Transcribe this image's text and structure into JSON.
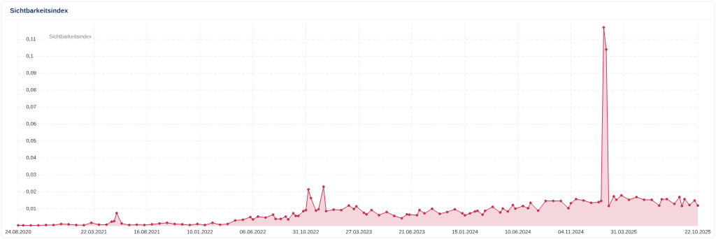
{
  "chart_data": {
    "type": "area",
    "title": "Sichtbarkeitsindex",
    "legend_title": "Sichtbarkeitsindex",
    "grid": true,
    "marker": "circle",
    "line_style": "solid",
    "color": "#c8324f",
    "xlim": [
      "2020-08-24",
      "2025-10-22"
    ],
    "xticks": [
      {
        "value": "2020-08-24",
        "label": "24.08.2020"
      },
      {
        "value": "2021-03-22",
        "label": "22.03.2021"
      },
      {
        "value": "2021-08-16",
        "label": "16.08.2021"
      },
      {
        "value": "2022-01-10",
        "label": "10.01.2022"
      },
      {
        "value": "2022-06-06",
        "label": "06.06.2022"
      },
      {
        "value": "2022-10-31",
        "label": "31.10.2022"
      },
      {
        "value": "2023-03-27",
        "label": "27.03.2023"
      },
      {
        "value": "2023-08-21",
        "label": "21.08.2023"
      },
      {
        "value": "2024-01-15",
        "label": "15.01.2024"
      },
      {
        "value": "2024-06-10",
        "label": "10.06.2024"
      },
      {
        "value": "2024-11-04",
        "label": "04.11.2024"
      },
      {
        "value": "2025-03-31",
        "label": "31.03.2025"
      },
      {
        "value": "2025-10-22",
        "label": "22.10.2025"
      }
    ],
    "ylim": [
      0,
      0.12
    ],
    "yticks": [
      {
        "value": 0.01,
        "label": "0,01"
      },
      {
        "value": 0.02,
        "label": "0,02"
      },
      {
        "value": 0.03,
        "label": "0,03"
      },
      {
        "value": 0.04,
        "label": "0,04"
      },
      {
        "value": 0.05,
        "label": "0,05"
      },
      {
        "value": 0.06,
        "label": "0,06"
      },
      {
        "value": 0.07,
        "label": "0,07"
      },
      {
        "value": 0.08,
        "label": "0,08"
      },
      {
        "value": 0.09,
        "label": "0,09"
      },
      {
        "value": 0.1,
        "label": "0,1"
      },
      {
        "value": 0.11,
        "label": "0,11"
      }
    ],
    "x": [
      "2020-08-24",
      "2020-09-07",
      "2020-09-28",
      "2020-10-19",
      "2020-11-09",
      "2020-11-30",
      "2020-12-21",
      "2021-01-11",
      "2021-02-01",
      "2021-02-22",
      "2021-03-15",
      "2021-04-05",
      "2021-04-26",
      "2021-05-10",
      "2021-05-17",
      "2021-05-24",
      "2021-06-07",
      "2021-06-28",
      "2021-07-19",
      "2021-08-09",
      "2021-08-30",
      "2021-09-20",
      "2021-10-11",
      "2021-11-01",
      "2021-11-22",
      "2021-12-13",
      "2022-01-03",
      "2022-01-24",
      "2022-02-14",
      "2022-03-07",
      "2022-03-28",
      "2022-04-18",
      "2022-05-09",
      "2022-05-30",
      "2022-06-06",
      "2022-06-20",
      "2022-07-11",
      "2022-08-01",
      "2022-08-08",
      "2022-08-22",
      "2022-09-05",
      "2022-09-12",
      "2022-09-26",
      "2022-10-03",
      "2022-10-10",
      "2022-10-24",
      "2022-10-31",
      "2022-11-07",
      "2022-11-14",
      "2022-11-28",
      "2022-12-05",
      "2022-12-19",
      "2022-12-26",
      "2023-01-16",
      "2023-02-06",
      "2023-02-27",
      "2023-03-13",
      "2023-03-20",
      "2023-04-10",
      "2023-04-17",
      "2023-05-01",
      "2023-05-22",
      "2023-06-12",
      "2023-07-03",
      "2023-07-24",
      "2023-08-07",
      "2023-08-14",
      "2023-09-04",
      "2023-09-11",
      "2023-09-25",
      "2023-10-16",
      "2023-11-06",
      "2023-11-27",
      "2023-12-18",
      "2024-01-08",
      "2024-01-15",
      "2024-01-29",
      "2024-02-12",
      "2024-02-19",
      "2024-03-04",
      "2024-03-11",
      "2024-04-01",
      "2024-04-22",
      "2024-04-29",
      "2024-05-13",
      "2024-05-27",
      "2024-06-03",
      "2024-06-24",
      "2024-07-08",
      "2024-07-15",
      "2024-08-05",
      "2024-08-26",
      "2024-09-16",
      "2024-10-07",
      "2024-10-28",
      "2024-11-04",
      "2024-11-18",
      "2024-12-09",
      "2024-12-30",
      "2025-01-20",
      "2025-01-27",
      "2025-02-03",
      "2025-02-10",
      "2025-02-17",
      "2025-03-03",
      "2025-03-10",
      "2025-03-24",
      "2025-04-14",
      "2025-05-05",
      "2025-05-26",
      "2025-06-16",
      "2025-07-07",
      "2025-07-14",
      "2025-07-28",
      "2025-08-18",
      "2025-09-01",
      "2025-09-08",
      "2025-09-15",
      "2025-09-29",
      "2025-10-13",
      "2025-10-22"
    ],
    "values": [
      0.0002,
      0.0002,
      0.0002,
      0.0002,
      0.0004,
      0.0004,
      0.001,
      0.0008,
      0.0004,
      0.0003,
      0.0017,
      0.0006,
      0.0006,
      0.0024,
      0.0027,
      0.0074,
      0.0013,
      0.0004,
      0.0006,
      0.0004,
      0.0008,
      0.0013,
      0.0017,
      0.001,
      0.0008,
      0.0004,
      0.001,
      0.0004,
      0.0017,
      0.0006,
      0.001,
      0.0031,
      0.0035,
      0.0051,
      0.0037,
      0.0054,
      0.0048,
      0.0065,
      0.004,
      0.004,
      0.0054,
      0.0037,
      0.0073,
      0.0058,
      0.0058,
      0.0086,
      0.0092,
      0.0214,
      0.0163,
      0.0089,
      0.0097,
      0.023,
      0.0086,
      0.0095,
      0.0092,
      0.0119,
      0.0099,
      0.0114,
      0.0076,
      0.0067,
      0.0092,
      0.0062,
      0.0081,
      0.0058,
      0.0044,
      0.0067,
      0.0065,
      0.0062,
      0.0092,
      0.0073,
      0.01,
      0.007,
      0.0081,
      0.0097,
      0.0073,
      0.0061,
      0.0073,
      0.0084,
      0.0088,
      0.0065,
      0.0088,
      0.0111,
      0.0078,
      0.0101,
      0.0084,
      0.0122,
      0.0101,
      0.0116,
      0.0103,
      0.0135,
      0.0089,
      0.0146,
      0.0146,
      0.0146,
      0.0103,
      0.0133,
      0.0157,
      0.0149,
      0.0135,
      0.0139,
      0.0146,
      0.117,
      0.104,
      0.0116,
      0.0173,
      0.0153,
      0.0179,
      0.0153,
      0.0169,
      0.0153,
      0.0153,
      0.0119,
      0.0156,
      0.0157,
      0.0129,
      0.0169,
      0.0116,
      0.0157,
      0.0122,
      0.0149,
      0.0119
    ]
  }
}
